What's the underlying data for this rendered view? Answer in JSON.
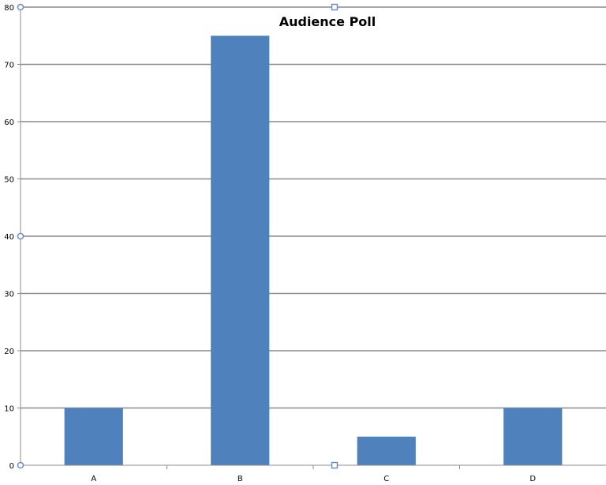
{
  "chart_data": {
    "type": "bar",
    "title": "Audience Poll",
    "categories": [
      "A",
      "B",
      "C",
      "D"
    ],
    "values": [
      10,
      75,
      5,
      10
    ],
    "ylim": [
      0,
      80
    ],
    "yticks": [
      0,
      10,
      20,
      30,
      40,
      50,
      60,
      70,
      80
    ],
    "xlabel": "",
    "ylabel": "",
    "grid": true,
    "legend": "none",
    "bar_color": "#4f81bd"
  }
}
